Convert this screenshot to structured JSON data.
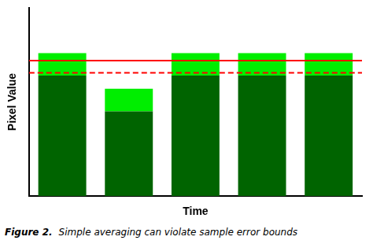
{
  "chart_data": {
    "type": "bar",
    "stacked": true,
    "categories": [
      null,
      null,
      null,
      null,
      null
    ],
    "series": [
      {
        "color": "#006400",
        "values": [
          0.64,
          0.45,
          0.64,
          0.64,
          0.64
        ]
      },
      {
        "color": "#00ee00",
        "values": [
          0.12,
          0.12,
          0.12,
          0.12,
          0.12
        ]
      }
    ],
    "xlabel": "Time",
    "ylabel": "Pixel Value",
    "ylim": [
      0,
      1.0
    ],
    "tick_labels": false,
    "grid": false,
    "hlines": [
      {
        "value": 0.72,
        "color": "red",
        "line_style": "solid"
      },
      {
        "value": 0.655,
        "color": "red",
        "line_style": "dashed"
      }
    ],
    "figure_label": "Figure 2.",
    "caption": "Simple averaging can violate sample error bounds"
  }
}
